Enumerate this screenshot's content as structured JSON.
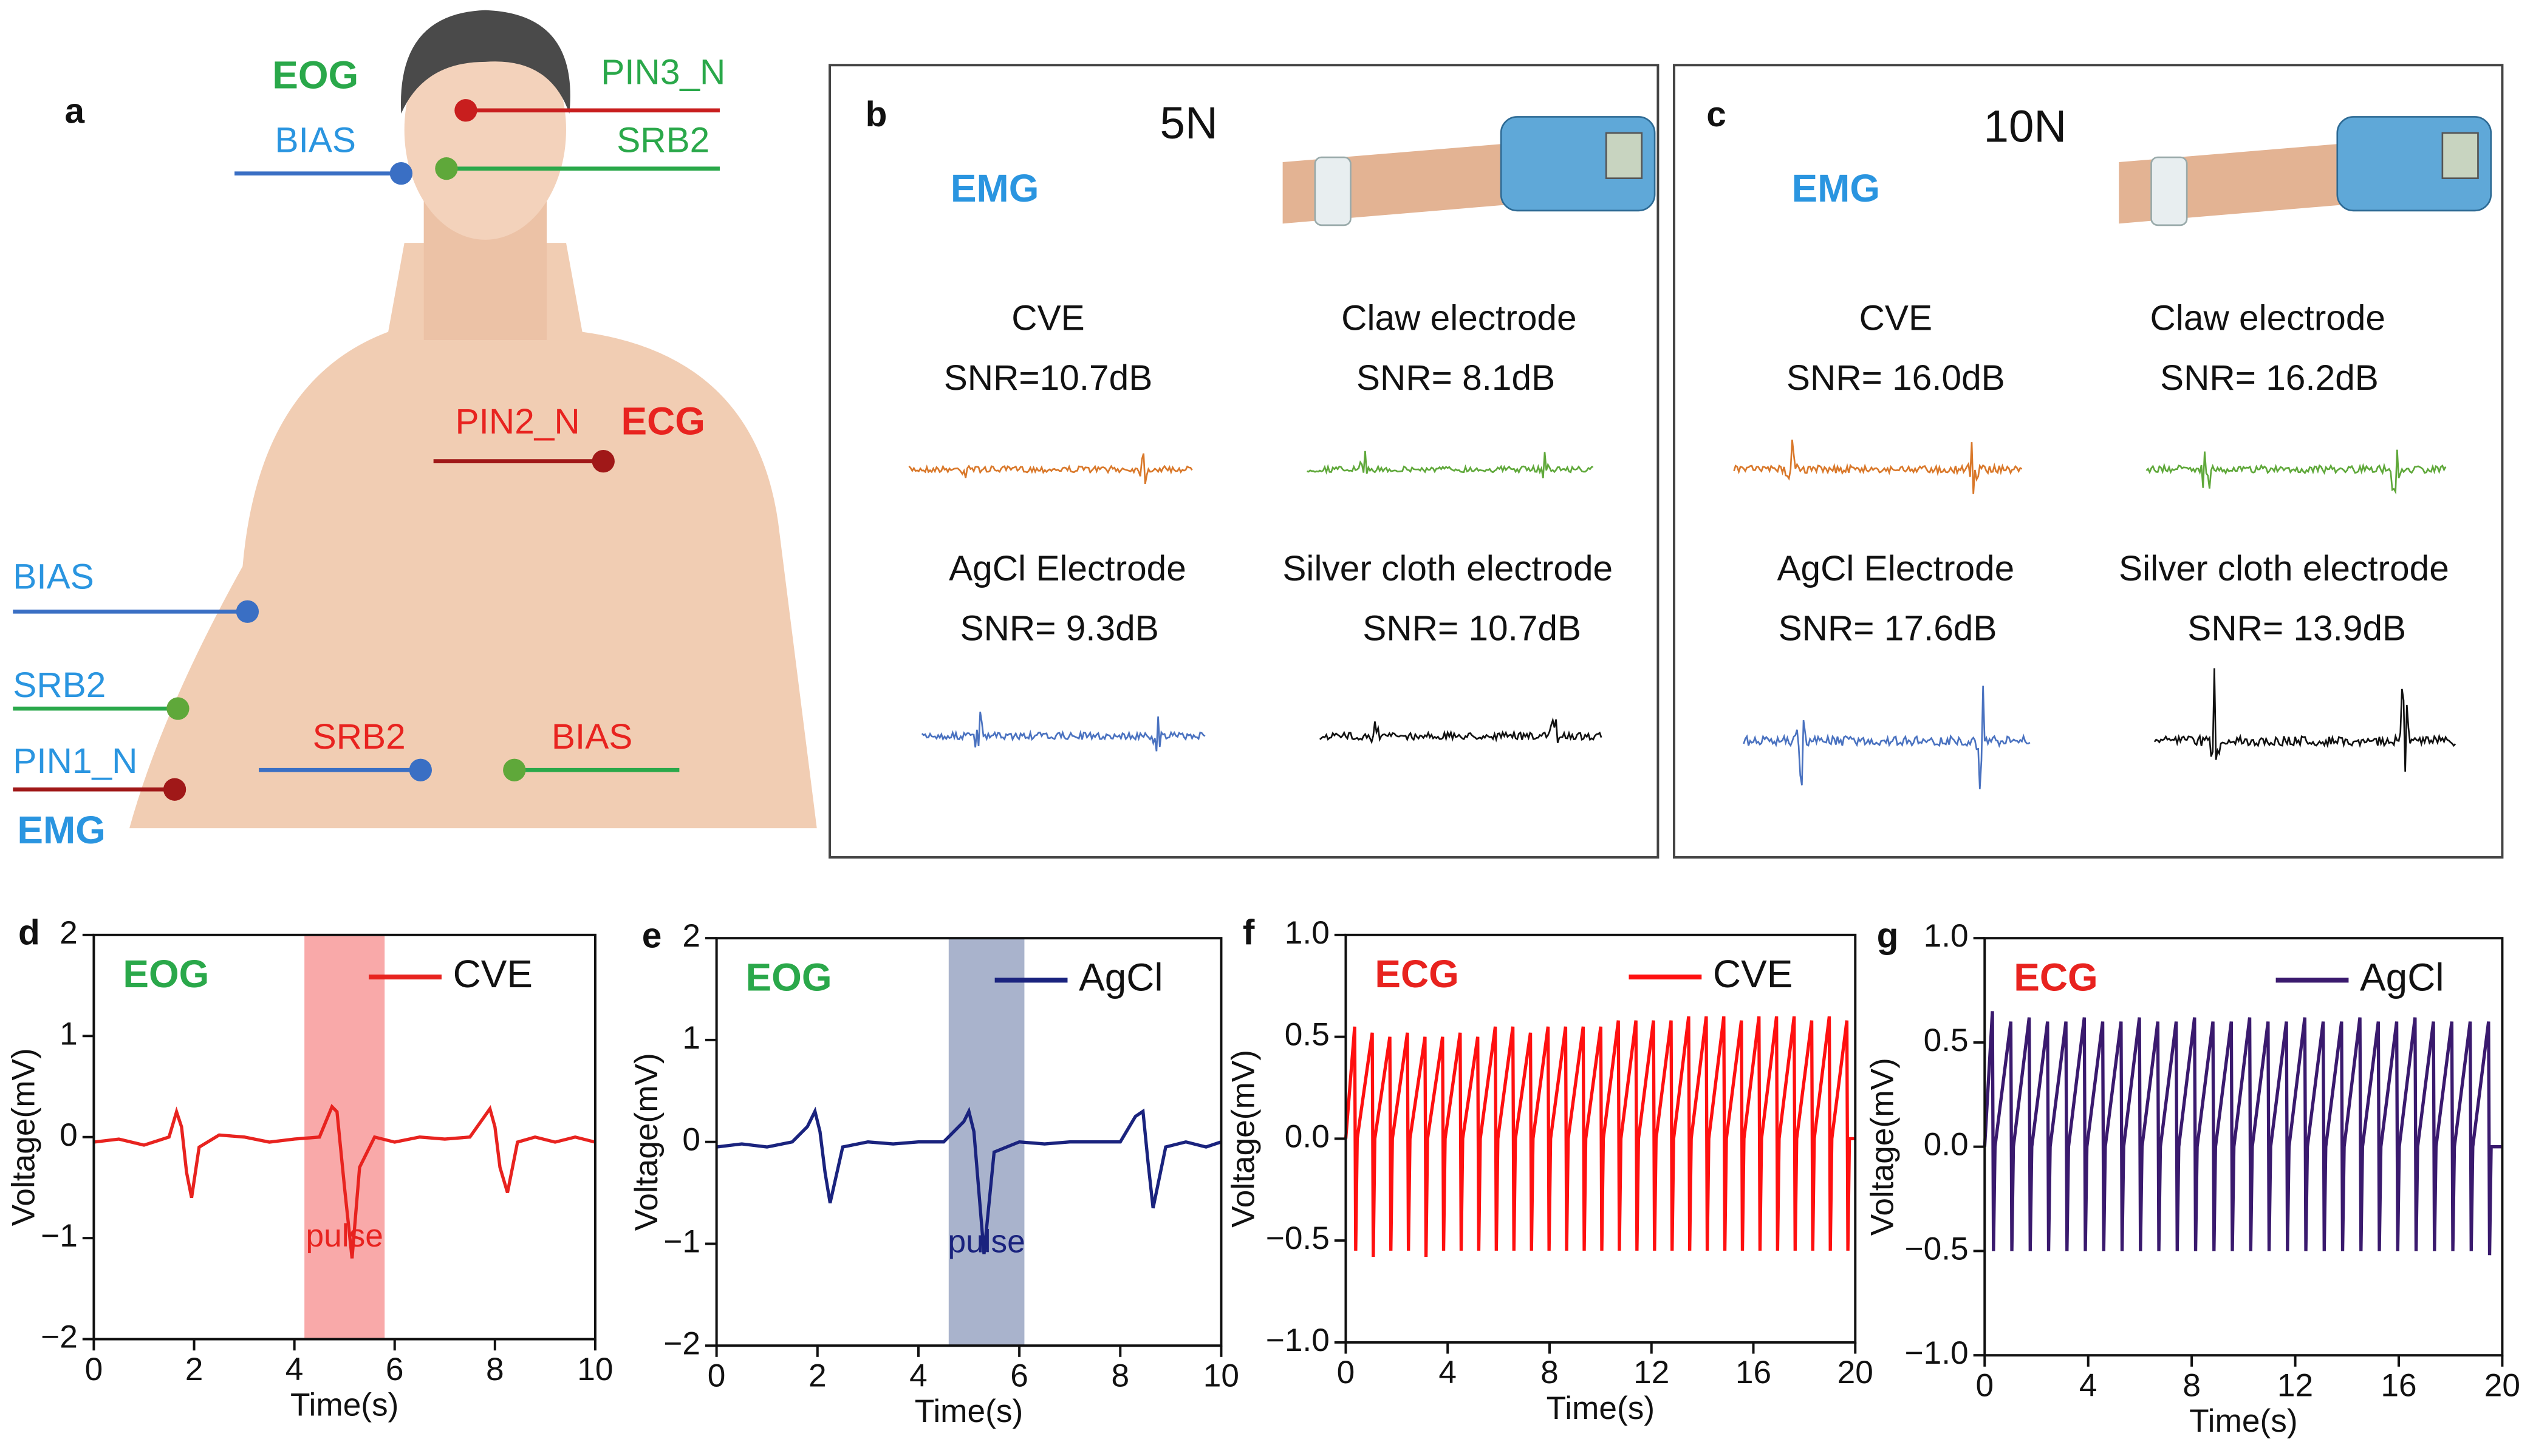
{
  "panel_a": {
    "label": "a",
    "signals": [
      "EOG",
      "ECG",
      "EMG"
    ],
    "electrodes": [
      "PIN3_N",
      "BIAS",
      "SRB2",
      "PIN2_N",
      "BIAS",
      "SRB2",
      "PIN1_N",
      "SRB2",
      "BIAS"
    ]
  },
  "panel_b": {
    "label": "b",
    "force": "5N",
    "signal": "EMG",
    "electrodes": [
      {
        "name": "CVE",
        "snr": "SNR=10.7dB",
        "color": "#d9782a"
      },
      {
        "name": "Claw electrode",
        "snr": "SNR= 8.1dB",
        "color": "#5fa83a"
      },
      {
        "name": "AgCl Electrode",
        "snr": "SNR= 9.3dB",
        "color": "#4a72c0"
      },
      {
        "name": "Silver cloth electrode",
        "snr": "SNR= 10.7dB",
        "color": "#111111"
      }
    ]
  },
  "panel_c": {
    "label": "c",
    "force": "10N",
    "signal": "EMG",
    "electrodes": [
      {
        "name": "CVE",
        "snr": "SNR= 16.0dB",
        "color": "#d9782a"
      },
      {
        "name": "Claw electrode",
        "snr": "SNR= 16.2dB",
        "color": "#5fa83a"
      },
      {
        "name": "AgCl Electrode",
        "snr": "SNR= 17.6dB",
        "color": "#4a72c0"
      },
      {
        "name": "Silver cloth electrode",
        "snr": "SNR= 13.9dB",
        "color": "#111111"
      }
    ]
  },
  "chart_data": [
    {
      "type": "line",
      "panel": "d",
      "annotation": "EOG",
      "annotation_color": "#2aa84a",
      "xlabel": "Time(s)",
      "ylabel": "Voltage(mV)",
      "xlim": [
        0,
        10
      ],
      "ylim": [
        -2,
        2
      ],
      "xticks": [
        0,
        2,
        4,
        6,
        8,
        10
      ],
      "yticks": [
        {
          "value": -2,
          "label": "−2"
        },
        {
          "value": -1,
          "label": "−1"
        },
        0,
        1,
        2
      ],
      "highlight": {
        "range": [
          4.2,
          5.8
        ],
        "color": "#f9a9a9",
        "label": "pulse",
        "label_color": "#e8231f"
      },
      "x": [
        0,
        0.5,
        1,
        1.5,
        1.65,
        1.75,
        1.85,
        1.95,
        2.1,
        2.5,
        3,
        3.5,
        4,
        4.5,
        4.75,
        4.85,
        5.0,
        5.15,
        5.3,
        5.6,
        6,
        6.5,
        7,
        7.5,
        7.9,
        8.0,
        8.1,
        8.25,
        8.45,
        8.8,
        9.2,
        9.6,
        10
      ],
      "series": [
        {
          "name": "CVE",
          "color": "#e8231f",
          "values": [
            -0.05,
            -0.02,
            -0.08,
            0,
            0.25,
            0.1,
            -0.35,
            -0.6,
            -0.1,
            0.02,
            0,
            -0.05,
            -0.02,
            0,
            0.3,
            0.25,
            -0.5,
            -1.2,
            -0.3,
            0,
            -0.05,
            0,
            -0.02,
            0,
            0.28,
            0.1,
            -0.3,
            -0.55,
            -0.05,
            0,
            -0.05,
            0,
            -0.05
          ]
        }
      ]
    },
    {
      "type": "line",
      "panel": "e",
      "annotation": "EOG",
      "annotation_color": "#2aa84a",
      "xlabel": "Time(s)",
      "ylabel": "Voltage(mV)",
      "xlim": [
        0,
        10
      ],
      "ylim": [
        -2,
        2
      ],
      "xticks": [
        0,
        2,
        4,
        6,
        8,
        10
      ],
      "yticks": [
        {
          "value": -2,
          "label": "−2"
        },
        {
          "value": -1,
          "label": "−1"
        },
        0,
        1,
        2
      ],
      "highlight": {
        "range": [
          4.6,
          6.1
        ],
        "color": "#a9b3cc",
        "label": "pulse",
        "label_color": "#1a237e"
      },
      "x": [
        0,
        0.5,
        1,
        1.5,
        1.8,
        1.95,
        2.05,
        2.15,
        2.25,
        2.5,
        3,
        3.5,
        4,
        4.5,
        4.9,
        5.0,
        5.1,
        5.2,
        5.3,
        5.5,
        6,
        6.5,
        7,
        7.5,
        8,
        8.3,
        8.45,
        8.55,
        8.65,
        8.9,
        9.3,
        9.7,
        10
      ],
      "series": [
        {
          "name": "AgCl",
          "color": "#1a237e",
          "values": [
            -0.05,
            -0.02,
            -0.05,
            0,
            0.15,
            0.3,
            0.1,
            -0.3,
            -0.6,
            -0.05,
            0,
            -0.02,
            0,
            0,
            0.2,
            0.3,
            0.1,
            -0.5,
            -1.1,
            -0.1,
            0,
            -0.02,
            0,
            0,
            0,
            0.25,
            0.3,
            -0.2,
            -0.65,
            -0.05,
            0,
            -0.05,
            0
          ]
        }
      ]
    },
    {
      "type": "line",
      "panel": "f",
      "annotation": "ECG",
      "annotation_color": "#e8231f",
      "xlabel": "Time(s)",
      "ylabel": "Voltage(mV)",
      "xlim": [
        0,
        20
      ],
      "ylim": [
        -1,
        1
      ],
      "xticks": [
        0,
        4,
        8,
        12,
        16,
        20
      ],
      "yticks": [
        {
          "value": -1,
          "label": "−1.0"
        },
        {
          "value": -0.5,
          "label": "−0.5"
        },
        {
          "value": 0,
          "label": "0.0"
        },
        0.5,
        {
          "value": 1,
          "label": "1.0"
        }
      ],
      "x": [
        0,
        0.35,
        0.39,
        0.45,
        1.04,
        1.08,
        1.14,
        1.73,
        1.77,
        1.83,
        2.42,
        2.46,
        2.52,
        3.11,
        3.15,
        3.21,
        3.8,
        3.84,
        3.9,
        4.49,
        4.53,
        4.59,
        5.18,
        5.22,
        5.28,
        5.87,
        5.91,
        5.97,
        6.56,
        6.6,
        6.66,
        7.25,
        7.29,
        7.35,
        7.94,
        7.98,
        8.04,
        8.63,
        8.67,
        8.73,
        9.32,
        9.36,
        9.42,
        10.01,
        10.05,
        10.11,
        10.7,
        10.74,
        10.8,
        11.39,
        11.43,
        11.49,
        12.08,
        12.12,
        12.18,
        12.77,
        12.81,
        12.87,
        13.46,
        13.5,
        13.56,
        14.15,
        14.19,
        14.25,
        14.84,
        14.88,
        14.94,
        15.53,
        15.57,
        15.63,
        16.22,
        16.26,
        16.32,
        16.91,
        16.95,
        17.01,
        17.6,
        17.64,
        17.7,
        18.29,
        18.33,
        18.39,
        18.98,
        19.02,
        19.08,
        19.67,
        19.71,
        19.77,
        20
      ],
      "series": [
        {
          "name": "CVE",
          "color": "#ff1010",
          "values": [
            0,
            0.55,
            -0.55,
            0,
            0.52,
            -0.58,
            0,
            0.5,
            -0.55,
            0,
            0.52,
            -0.55,
            0,
            0.5,
            -0.58,
            0,
            0.5,
            -0.55,
            0,
            0.52,
            -0.55,
            0,
            0.5,
            -0.55,
            0,
            0.55,
            -0.55,
            0,
            0.55,
            -0.55,
            0,
            0.52,
            -0.55,
            0,
            0.55,
            -0.55,
            0,
            0.55,
            -0.55,
            0,
            0.55,
            -0.55,
            0,
            0.55,
            -0.55,
            0,
            0.58,
            -0.55,
            0,
            0.58,
            -0.55,
            0,
            0.58,
            -0.55,
            0,
            0.58,
            -0.55,
            0,
            0.6,
            -0.55,
            0,
            0.6,
            -0.55,
            0,
            0.6,
            -0.55,
            0,
            0.58,
            -0.55,
            0,
            0.6,
            -0.55,
            0,
            0.6,
            -0.55,
            0,
            0.6,
            -0.55,
            0,
            0.58,
            -0.55,
            0,
            0.6,
            -0.55,
            0,
            0.58,
            -0.55,
            0,
            0
          ]
        }
      ]
    },
    {
      "type": "line",
      "panel": "g",
      "annotation": "ECG",
      "annotation_color": "#e8231f",
      "xlabel": "Time(s)",
      "ylabel": "Voltage(mV)",
      "xlim": [
        0,
        20
      ],
      "ylim": [
        -1,
        1
      ],
      "xticks": [
        0,
        4,
        8,
        12,
        16,
        20
      ],
      "yticks": [
        {
          "value": -1,
          "label": "−1.0"
        },
        {
          "value": -0.5,
          "label": "−0.5"
        },
        {
          "value": 0,
          "label": "0.0"
        },
        0.5,
        {
          "value": 1,
          "label": "1.0"
        }
      ],
      "x": [
        0,
        0.3,
        0.34,
        0.4,
        1.01,
        1.05,
        1.11,
        1.72,
        1.76,
        1.82,
        2.43,
        2.47,
        2.53,
        3.14,
        3.18,
        3.24,
        3.85,
        3.89,
        3.95,
        4.56,
        4.6,
        4.66,
        5.27,
        5.31,
        5.37,
        5.98,
        6.02,
        6.08,
        6.69,
        6.73,
        6.79,
        7.4,
        7.44,
        7.5,
        8.11,
        8.15,
        8.21,
        8.82,
        8.86,
        8.92,
        9.53,
        9.57,
        9.63,
        10.24,
        10.28,
        10.34,
        10.95,
        10.99,
        11.05,
        11.66,
        11.7,
        11.76,
        12.37,
        12.41,
        12.47,
        13.08,
        13.12,
        13.18,
        13.79,
        13.83,
        13.89,
        14.5,
        14.54,
        14.6,
        15.21,
        15.25,
        15.31,
        15.92,
        15.96,
        16.02,
        16.63,
        16.67,
        16.73,
        17.34,
        17.38,
        17.44,
        18.05,
        18.09,
        18.15,
        18.76,
        18.8,
        18.86,
        19.47,
        19.51,
        19.57,
        20
      ],
      "series": [
        {
          "name": "AgCl",
          "color": "#3a1a6e",
          "values": [
            0,
            0.65,
            -0.5,
            0,
            0.6,
            -0.5,
            0,
            0.62,
            -0.5,
            0,
            0.6,
            -0.5,
            0,
            0.6,
            -0.5,
            0,
            0.62,
            -0.5,
            0,
            0.6,
            -0.5,
            0,
            0.6,
            -0.5,
            0,
            0.62,
            -0.5,
            0,
            0.6,
            -0.5,
            0,
            0.6,
            -0.5,
            0,
            0.62,
            -0.5,
            0,
            0.6,
            -0.5,
            0,
            0.6,
            -0.5,
            0,
            0.62,
            -0.5,
            0,
            0.6,
            -0.5,
            0,
            0.6,
            -0.5,
            0,
            0.62,
            -0.5,
            0,
            0.6,
            -0.5,
            0,
            0.6,
            -0.5,
            0,
            0.62,
            -0.5,
            0,
            0.6,
            -0.5,
            0,
            0.6,
            -0.5,
            0,
            0.62,
            -0.5,
            0,
            0.6,
            -0.5,
            0,
            0.6,
            -0.5,
            0,
            0.6,
            -0.5,
            0,
            0.6,
            -0.52,
            0,
            0
          ]
        }
      ]
    }
  ]
}
